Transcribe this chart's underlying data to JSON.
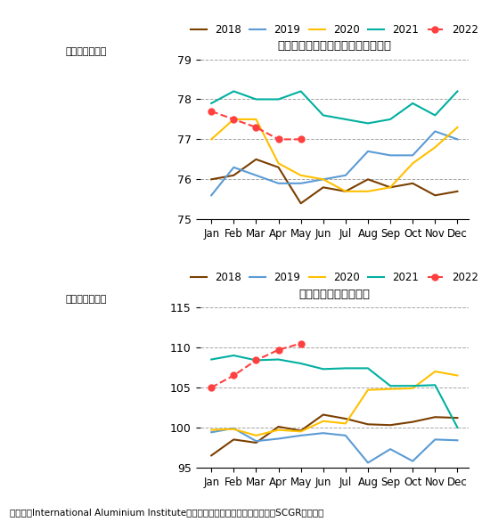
{
  "title1": "アルミ生産状況：中国除く世界合計",
  "title2": "アルミ生産状況：中国",
  "ylabel": "（千トン／日）",
  "xlabel_months": [
    "Jan",
    "Feb",
    "Mar",
    "Apr",
    "May",
    "Jun",
    "Jul",
    "Aug",
    "Sep",
    "Oct",
    "Nov",
    "Dec"
  ],
  "footnote": "（出所：International Aluminium Instituteより住友商事グローバルリサーチ（SCGR）作成）",
  "chart1": {
    "ylim": [
      75,
      79
    ],
    "yticks": [
      75,
      76,
      77,
      78,
      79
    ],
    "series": {
      "2018": [
        76.0,
        76.1,
        76.5,
        76.3,
        75.4,
        75.8,
        75.7,
        76.0,
        75.8,
        75.9,
        75.6,
        75.7
      ],
      "2019": [
        75.6,
        76.3,
        76.1,
        75.9,
        75.9,
        76.0,
        76.1,
        76.7,
        76.6,
        76.6,
        77.2,
        77.0
      ],
      "2020": [
        77.0,
        77.5,
        77.5,
        76.4,
        76.1,
        76.0,
        75.7,
        75.7,
        75.8,
        76.4,
        76.8,
        77.3
      ],
      "2021": [
        77.9,
        78.2,
        78.0,
        78.0,
        78.2,
        77.6,
        77.5,
        77.4,
        77.5,
        77.9,
        77.6,
        78.2
      ],
      "2022": [
        77.7,
        77.5,
        77.3,
        77.0,
        77.0,
        null,
        null,
        null,
        null,
        null,
        null,
        null
      ]
    }
  },
  "chart2": {
    "ylim": [
      95,
      115
    ],
    "yticks": [
      95,
      100,
      105,
      110,
      115
    ],
    "series": {
      "2018": [
        96.5,
        98.5,
        98.1,
        100.1,
        99.6,
        101.6,
        101.1,
        100.4,
        100.3,
        100.7,
        101.3,
        101.2
      ],
      "2019": [
        99.4,
        99.9,
        98.3,
        98.6,
        99.0,
        99.3,
        99.0,
        95.6,
        97.3,
        95.8,
        98.5,
        98.4
      ],
      "2020": [
        99.7,
        99.8,
        99.0,
        99.7,
        99.5,
        100.8,
        100.5,
        104.7,
        104.8,
        104.9,
        107.0,
        106.5
      ],
      "2021": [
        108.5,
        109.0,
        108.4,
        108.5,
        108.0,
        107.3,
        107.4,
        107.4,
        105.2,
        105.2,
        105.3,
        100.0
      ],
      "2022": [
        105.0,
        106.5,
        108.4,
        109.7,
        110.5,
        null,
        null,
        null,
        null,
        null,
        null,
        null
      ]
    }
  },
  "series_styles": {
    "2018": {
      "color": "#7B3F00",
      "marker": null,
      "linestyle": "-"
    },
    "2019": {
      "color": "#5B9BD5",
      "marker": null,
      "linestyle": "-"
    },
    "2020": {
      "color": "#FFC000",
      "marker": null,
      "linestyle": "-"
    },
    "2021": {
      "color": "#00B0A0",
      "marker": null,
      "linestyle": "-"
    },
    "2022": {
      "color": "#FF4040",
      "marker": "o",
      "linestyle": "--"
    }
  },
  "legend_order": [
    "2018",
    "2019",
    "2020",
    "2021",
    "2022"
  ]
}
